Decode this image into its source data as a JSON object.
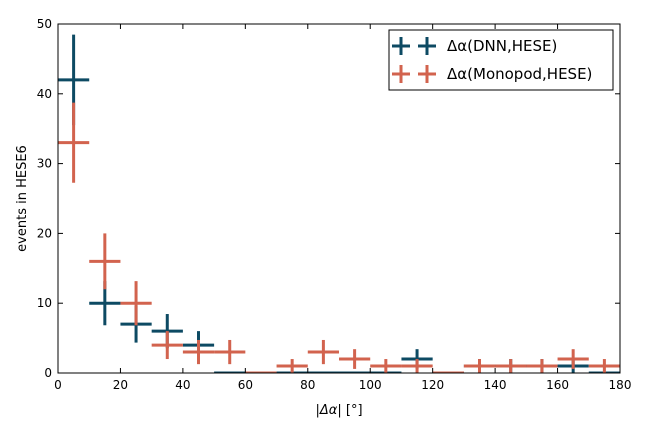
{
  "chart_data": {
    "type": "scatter",
    "title": "",
    "xlabel": "|Δα| [°]",
    "ylabel": "events in HESE6",
    "xlim": [
      0,
      180
    ],
    "ylim": [
      0,
      50
    ],
    "xticks": [
      0,
      20,
      40,
      60,
      80,
      100,
      120,
      140,
      160,
      180
    ],
    "yticks": [
      0,
      10,
      20,
      30,
      40,
      50
    ],
    "grid": false,
    "legend_position": "top-right",
    "bin_width": 10,
    "series": [
      {
        "name": "Δα(DNN,HESE)",
        "color": "#0d4a63",
        "x": [
          5,
          15,
          25,
          35,
          45,
          55,
          65,
          75,
          85,
          95,
          105,
          115,
          125,
          135,
          145,
          155,
          165,
          175
        ],
        "values": [
          42,
          10,
          7,
          6,
          4,
          0,
          0,
          0,
          0,
          0,
          0,
          2,
          0,
          1,
          1,
          1,
          1,
          0
        ]
      },
      {
        "name": "Δα(Monopod,HESE)",
        "color": "#d2634e",
        "x": [
          5,
          15,
          25,
          35,
          45,
          55,
          65,
          75,
          85,
          95,
          105,
          115,
          125,
          135,
          145,
          155,
          165,
          175
        ],
        "values": [
          33,
          16,
          10,
          4,
          3,
          3,
          0,
          1,
          3,
          2,
          1,
          1,
          0,
          1,
          1,
          1,
          2,
          1
        ]
      }
    ]
  }
}
